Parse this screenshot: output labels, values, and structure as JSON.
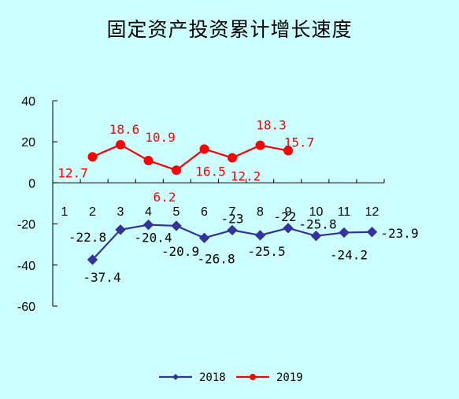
{
  "chart_data": {
    "type": "line",
    "title": "固定资产投资累计增长速度",
    "categories": [
      "1",
      "2",
      "3",
      "4",
      "5",
      "6",
      "7",
      "8",
      "9",
      "10",
      "11",
      "12"
    ],
    "yticks": [
      "40",
      "20",
      "0",
      "-20",
      "-40",
      "-60"
    ],
    "ylim": [
      -60,
      40
    ],
    "grid": false,
    "legend_position": "bottom",
    "series": [
      {
        "name": "2018",
        "color": "#333399",
        "marker": "diamond",
        "values": [
          null,
          -37.4,
          -22.8,
          -20.4,
          -20.9,
          -26.8,
          -23,
          -25.5,
          -22,
          -25.8,
          -24.2,
          -23.9
        ],
        "labels": [
          null,
          "-37.4",
          "-22.8",
          "-20.4",
          "-20.9",
          "-26.8",
          "-23",
          "-25.5",
          "-22",
          "-25.8",
          "-24.2",
          "-23.9"
        ]
      },
      {
        "name": "2019",
        "color": "#ff0000",
        "marker": "circle",
        "values": [
          null,
          12.7,
          18.6,
          10.9,
          6.2,
          16.5,
          12.2,
          18.3,
          15.7,
          null,
          null,
          null
        ],
        "labels": [
          null,
          "12.7",
          "18.6",
          "10.9",
          "6.2",
          "16.5",
          "12.2",
          "18.3",
          "15.7",
          null,
          null,
          null
        ]
      }
    ]
  }
}
